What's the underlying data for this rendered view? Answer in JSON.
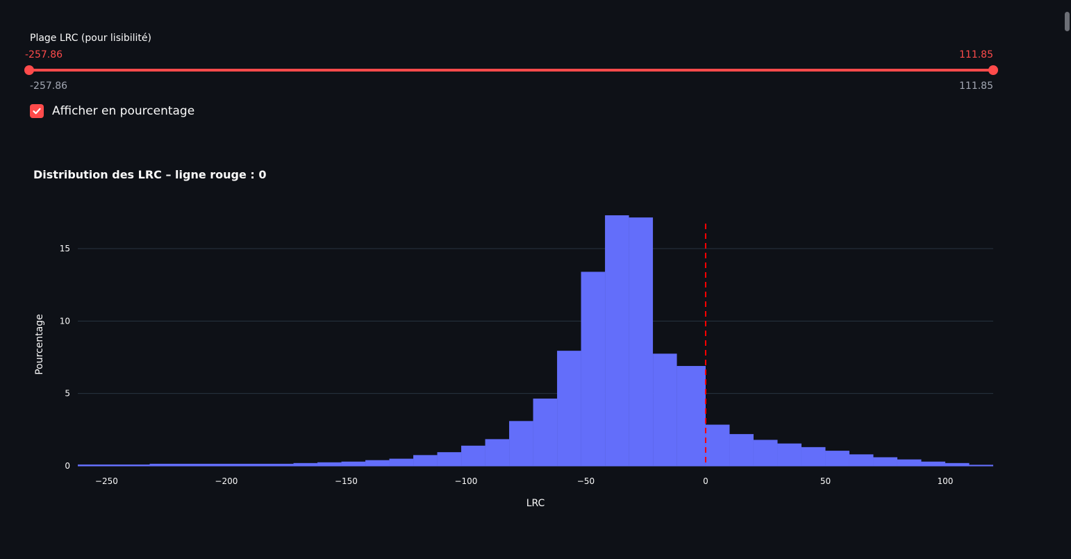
{
  "slider": {
    "label": "Plage LRC (pour lisibilité)",
    "selected_min": "-257.86",
    "selected_max": "111.85",
    "bound_min": "-257.86",
    "bound_max": "111.85",
    "accent_color": "#ff4b4b"
  },
  "checkbox": {
    "label": "Afficher en pourcentage",
    "checked": true,
    "icon": "check-icon"
  },
  "chart_data": {
    "type": "bar",
    "title": "Distribution des LRC – ligne rouge : 0",
    "xlabel": "LRC",
    "ylabel": "Pourcentage",
    "xlim": [
      -262,
      120
    ],
    "ylim": [
      0,
      18.5
    ],
    "x_ticks": [
      -250,
      -200,
      -150,
      -100,
      -50,
      0,
      50,
      100
    ],
    "x_tick_labels": [
      "−250",
      "−200",
      "−150",
      "−100",
      "−50",
      "0",
      "50",
      "100"
    ],
    "y_ticks": [
      0,
      5,
      10,
      15
    ],
    "y_tick_labels": [
      "0",
      "5",
      "10",
      "15"
    ],
    "grid": true,
    "bar_color": "#636efa",
    "vline": {
      "x": 0,
      "color": "#ff0000",
      "style": "dashed"
    },
    "bins": [
      {
        "x0": -262,
        "x1": -232,
        "value": 0.1
      },
      {
        "x0": -232,
        "x1": -172,
        "value": 0.15
      },
      {
        "x0": -172,
        "x1": -162,
        "value": 0.2
      },
      {
        "x0": -162,
        "x1": -152,
        "value": 0.25
      },
      {
        "x0": -152,
        "x1": -142,
        "value": 0.3
      },
      {
        "x0": -142,
        "x1": -132,
        "value": 0.4
      },
      {
        "x0": -132,
        "x1": -122,
        "value": 0.5
      },
      {
        "x0": -122,
        "x1": -112,
        "value": 0.75
      },
      {
        "x0": -112,
        "x1": -102,
        "value": 0.95
      },
      {
        "x0": -102,
        "x1": -92,
        "value": 1.4
      },
      {
        "x0": -92,
        "x1": -82,
        "value": 1.85
      },
      {
        "x0": -82,
        "x1": -72,
        "value": 3.1
      },
      {
        "x0": -72,
        "x1": -62,
        "value": 4.65
      },
      {
        "x0": -62,
        "x1": -52,
        "value": 7.95
      },
      {
        "x0": -52,
        "x1": -42,
        "value": 13.4
      },
      {
        "x0": -42,
        "x1": -32,
        "value": 17.3
      },
      {
        "x0": -32,
        "x1": -22,
        "value": 17.15
      },
      {
        "x0": -22,
        "x1": -12,
        "value": 7.75
      },
      {
        "x0": -12,
        "x1": 0,
        "value": 6.9
      },
      {
        "x0": 0,
        "x1": 10,
        "value": 2.85
      },
      {
        "x0": 10,
        "x1": 20,
        "value": 2.2
      },
      {
        "x0": 20,
        "x1": 30,
        "value": 1.8
      },
      {
        "x0": 30,
        "x1": 40,
        "value": 1.55
      },
      {
        "x0": 40,
        "x1": 50,
        "value": 1.3
      },
      {
        "x0": 50,
        "x1": 60,
        "value": 1.05
      },
      {
        "x0": 60,
        "x1": 70,
        "value": 0.8
      },
      {
        "x0": 70,
        "x1": 80,
        "value": 0.6
      },
      {
        "x0": 80,
        "x1": 90,
        "value": 0.45
      },
      {
        "x0": 90,
        "x1": 100,
        "value": 0.3
      },
      {
        "x0": 100,
        "x1": 110,
        "value": 0.2
      },
      {
        "x0": 110,
        "x1": 120,
        "value": 0.08
      }
    ]
  }
}
